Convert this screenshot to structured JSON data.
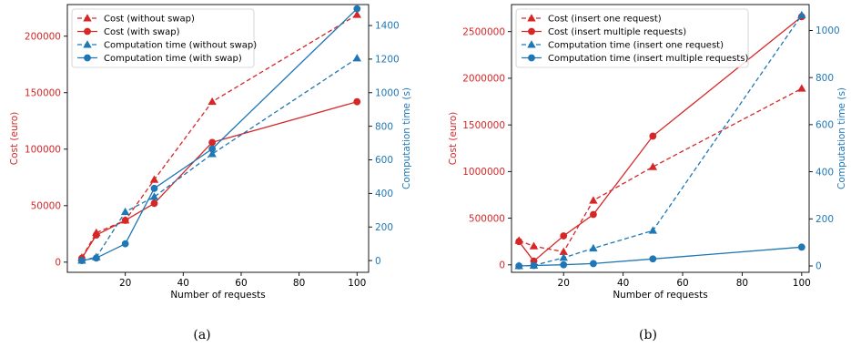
{
  "colors": {
    "cost": "#d62728",
    "time": "#1f77b4",
    "axis": "#000000"
  },
  "chart_data": [
    {
      "caption": "(a)",
      "type": "line",
      "xlabel": "Number of requests",
      "ylabel_left": "Cost (euro)",
      "ylabel_right": "Computation time (s)",
      "xticks": [
        20,
        40,
        60,
        80,
        100
      ],
      "xlim": [
        0,
        104
      ],
      "yticks_left": [
        0,
        50000,
        100000,
        150000,
        200000
      ],
      "ylim_left": [
        -9000,
        228000
      ],
      "yticks_right": [
        0,
        200,
        400,
        600,
        800,
        1000,
        1200,
        1400
      ],
      "ylim_right": [
        -70,
        1525
      ],
      "legend": "top-left",
      "series": [
        {
          "name": "Cost (without swap)",
          "axis": "left",
          "color": "cost",
          "dash": true,
          "marker": "triangle",
          "x": [
            5,
            10,
            20,
            30,
            50,
            100
          ],
          "y": [
            4000,
            26000,
            37000,
            73000,
            142000,
            219000
          ]
        },
        {
          "name": "Cost (with swap)",
          "axis": "left",
          "color": "cost",
          "dash": false,
          "marker": "circle",
          "x": [
            5,
            10,
            20,
            30,
            50,
            100
          ],
          "y": [
            3500,
            24000,
            37000,
            52000,
            106000,
            142000
          ]
        },
        {
          "name": "Computation time (without swap)",
          "axis": "right",
          "color": "time",
          "dash": true,
          "marker": "triangle",
          "x": [
            5,
            10,
            20,
            30,
            50,
            100
          ],
          "y": [
            0,
            20,
            290,
            380,
            635,
            1205
          ]
        },
        {
          "name": "Computation time (with swap)",
          "axis": "right",
          "color": "time",
          "dash": false,
          "marker": "circle",
          "x": [
            5,
            10,
            20,
            30,
            50,
            100
          ],
          "y": [
            0,
            15,
            100,
            430,
            665,
            1500
          ]
        }
      ]
    },
    {
      "caption": "(b)",
      "type": "line",
      "xlabel": "Number of requests",
      "ylabel_left": "Cost (euro)",
      "ylabel_right": "Computation time (s)",
      "xticks": [
        20,
        40,
        60,
        80,
        100
      ],
      "xlim": [
        2.5,
        102.5
      ],
      "yticks_left": [
        0,
        500000,
        1000000,
        1500000,
        2000000,
        2500000
      ],
      "ylim_left": [
        -80000,
        2790000
      ],
      "yticks_right": [
        0,
        200,
        400,
        600,
        800,
        1000
      ],
      "ylim_right": [
        -27,
        1110
      ],
      "legend": "top-left",
      "series": [
        {
          "name": "Cost (insert one request)",
          "axis": "left",
          "color": "cost",
          "dash": true,
          "marker": "triangle",
          "x": [
            5,
            10,
            20,
            30,
            50,
            100
          ],
          "y": [
            260000,
            200000,
            140000,
            690000,
            1050000,
            1890000
          ]
        },
        {
          "name": "Cost (insert multiple requests)",
          "axis": "left",
          "color": "cost",
          "dash": false,
          "marker": "circle",
          "x": [
            5,
            10,
            20,
            30,
            50,
            100
          ],
          "y": [
            250000,
            40000,
            310000,
            540000,
            1380000,
            2660000
          ]
        },
        {
          "name": "Computation time (insert one request)",
          "axis": "right",
          "color": "time",
          "dash": true,
          "marker": "triangle",
          "x": [
            5,
            10,
            20,
            30,
            50,
            100
          ],
          "y": [
            0,
            2,
            35,
            75,
            150,
            1065
          ]
        },
        {
          "name": "Computation time (insert multiple requests)",
          "axis": "right",
          "color": "time",
          "dash": false,
          "marker": "circle",
          "x": [
            5,
            10,
            20,
            30,
            50,
            100
          ],
          "y": [
            0,
            2,
            5,
            10,
            30,
            80
          ]
        }
      ]
    }
  ]
}
